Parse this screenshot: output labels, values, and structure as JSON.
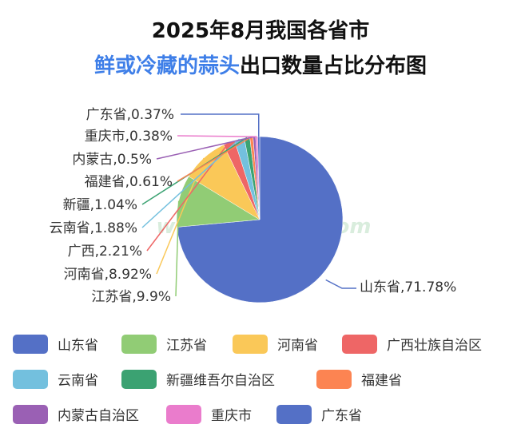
{
  "title_line1": "2025年8月我国各省市",
  "title_line2_highlight": "鲜或冷藏的蒜头",
  "title_line2_rest": "出口数量占比分布图",
  "watermark": "国际大蒜贸易网 www.51garlic.com",
  "chart_data": {
    "type": "pie",
    "title": "2025年8月我国各省市鲜或冷藏的蒜头出口数量占比分布图",
    "unit": "%",
    "slices": [
      {
        "name": "山东省",
        "label": "山东省,71.78%",
        "value": 71.78,
        "color": "#5470c6"
      },
      {
        "name": "江苏省",
        "label": "江苏省,9.9%",
        "value": 9.9,
        "color": "#91cc75"
      },
      {
        "name": "河南省",
        "label": "河南省,8.92%",
        "value": 8.92,
        "color": "#fac858"
      },
      {
        "name": "广西壮族自治区",
        "label": "广西,2.21%",
        "value": 2.21,
        "color": "#ee6666"
      },
      {
        "name": "云南省",
        "label": "云南省,1.88%",
        "value": 1.88,
        "color": "#73c0de"
      },
      {
        "name": "新疆维吾尔自治区",
        "label": "新疆,1.04%",
        "value": 1.04,
        "color": "#3ba272"
      },
      {
        "name": "福建省",
        "label": "福建省,0.61%",
        "value": 0.61,
        "color": "#fc8452"
      },
      {
        "name": "内蒙古自治区",
        "label": "内蒙古,0.5%",
        "value": 0.5,
        "color": "#9a60b4"
      },
      {
        "name": "重庆市",
        "label": "重庆市,0.38%",
        "value": 0.38,
        "color": "#ea7ccc"
      },
      {
        "name": "广东省",
        "label": "广东省,0.37%",
        "value": 0.37,
        "color": "#5470c6"
      }
    ],
    "legend_position": "bottom"
  }
}
